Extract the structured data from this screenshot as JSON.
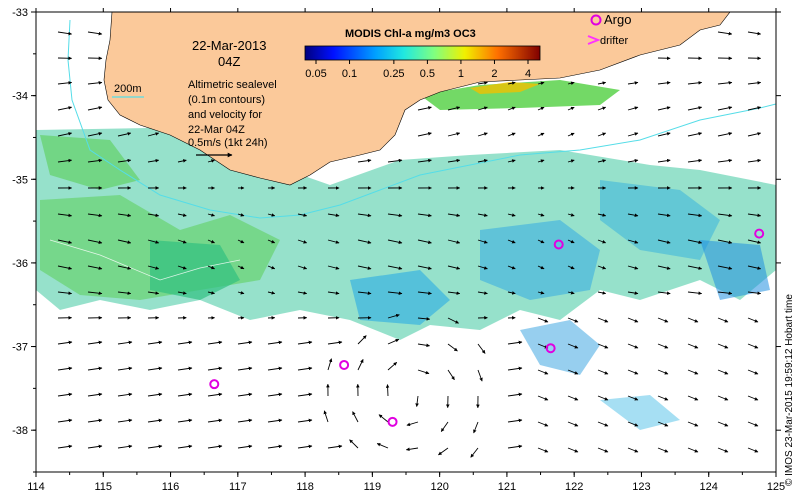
{
  "map": {
    "date_line1": "22-Mar-2013",
    "date_line2": "04Z",
    "description_lines": [
      "Altimetric sealevel",
      "(0.1m contours)",
      "and velocity for",
      "22-Mar 04Z"
    ],
    "scale_label": "0.5m/s (1kt 24h)",
    "isobath_label": "200m",
    "credit": "© IMOS 23-Mar-2015 19:59:12 Hobart time",
    "x_ticks": [
      "114",
      "115",
      "116",
      "117",
      "118",
      "119",
      "120",
      "121",
      "122",
      "123",
      "124",
      "125"
    ],
    "y_ticks": [
      "-33",
      "-34",
      "-35",
      "-36",
      "-37",
      "-38"
    ]
  },
  "colorbar": {
    "title": "MODIS Chl-a mg/m3 OC3",
    "tick_labels": [
      "0.05",
      "0.1",
      "0.25",
      "0.5",
      "1",
      "2",
      "4"
    ]
  },
  "legend": {
    "argo_label": "Argo",
    "drifter_label": "drifter"
  },
  "colors": {
    "land": "#fbc99a",
    "isobath": "#55dde8",
    "argo": "#e000e0",
    "drifter": "#ff33ff"
  },
  "argo_floats": [
    {
      "lon": 121.77,
      "lat": -35.78
    },
    {
      "lon": 124.75,
      "lat": -35.65
    },
    {
      "lon": 121.65,
      "lat": -37.02
    },
    {
      "lon": 118.58,
      "lat": -37.22
    },
    {
      "lon": 116.65,
      "lat": -37.45
    },
    {
      "lon": 119.3,
      "lat": -37.9
    }
  ]
}
